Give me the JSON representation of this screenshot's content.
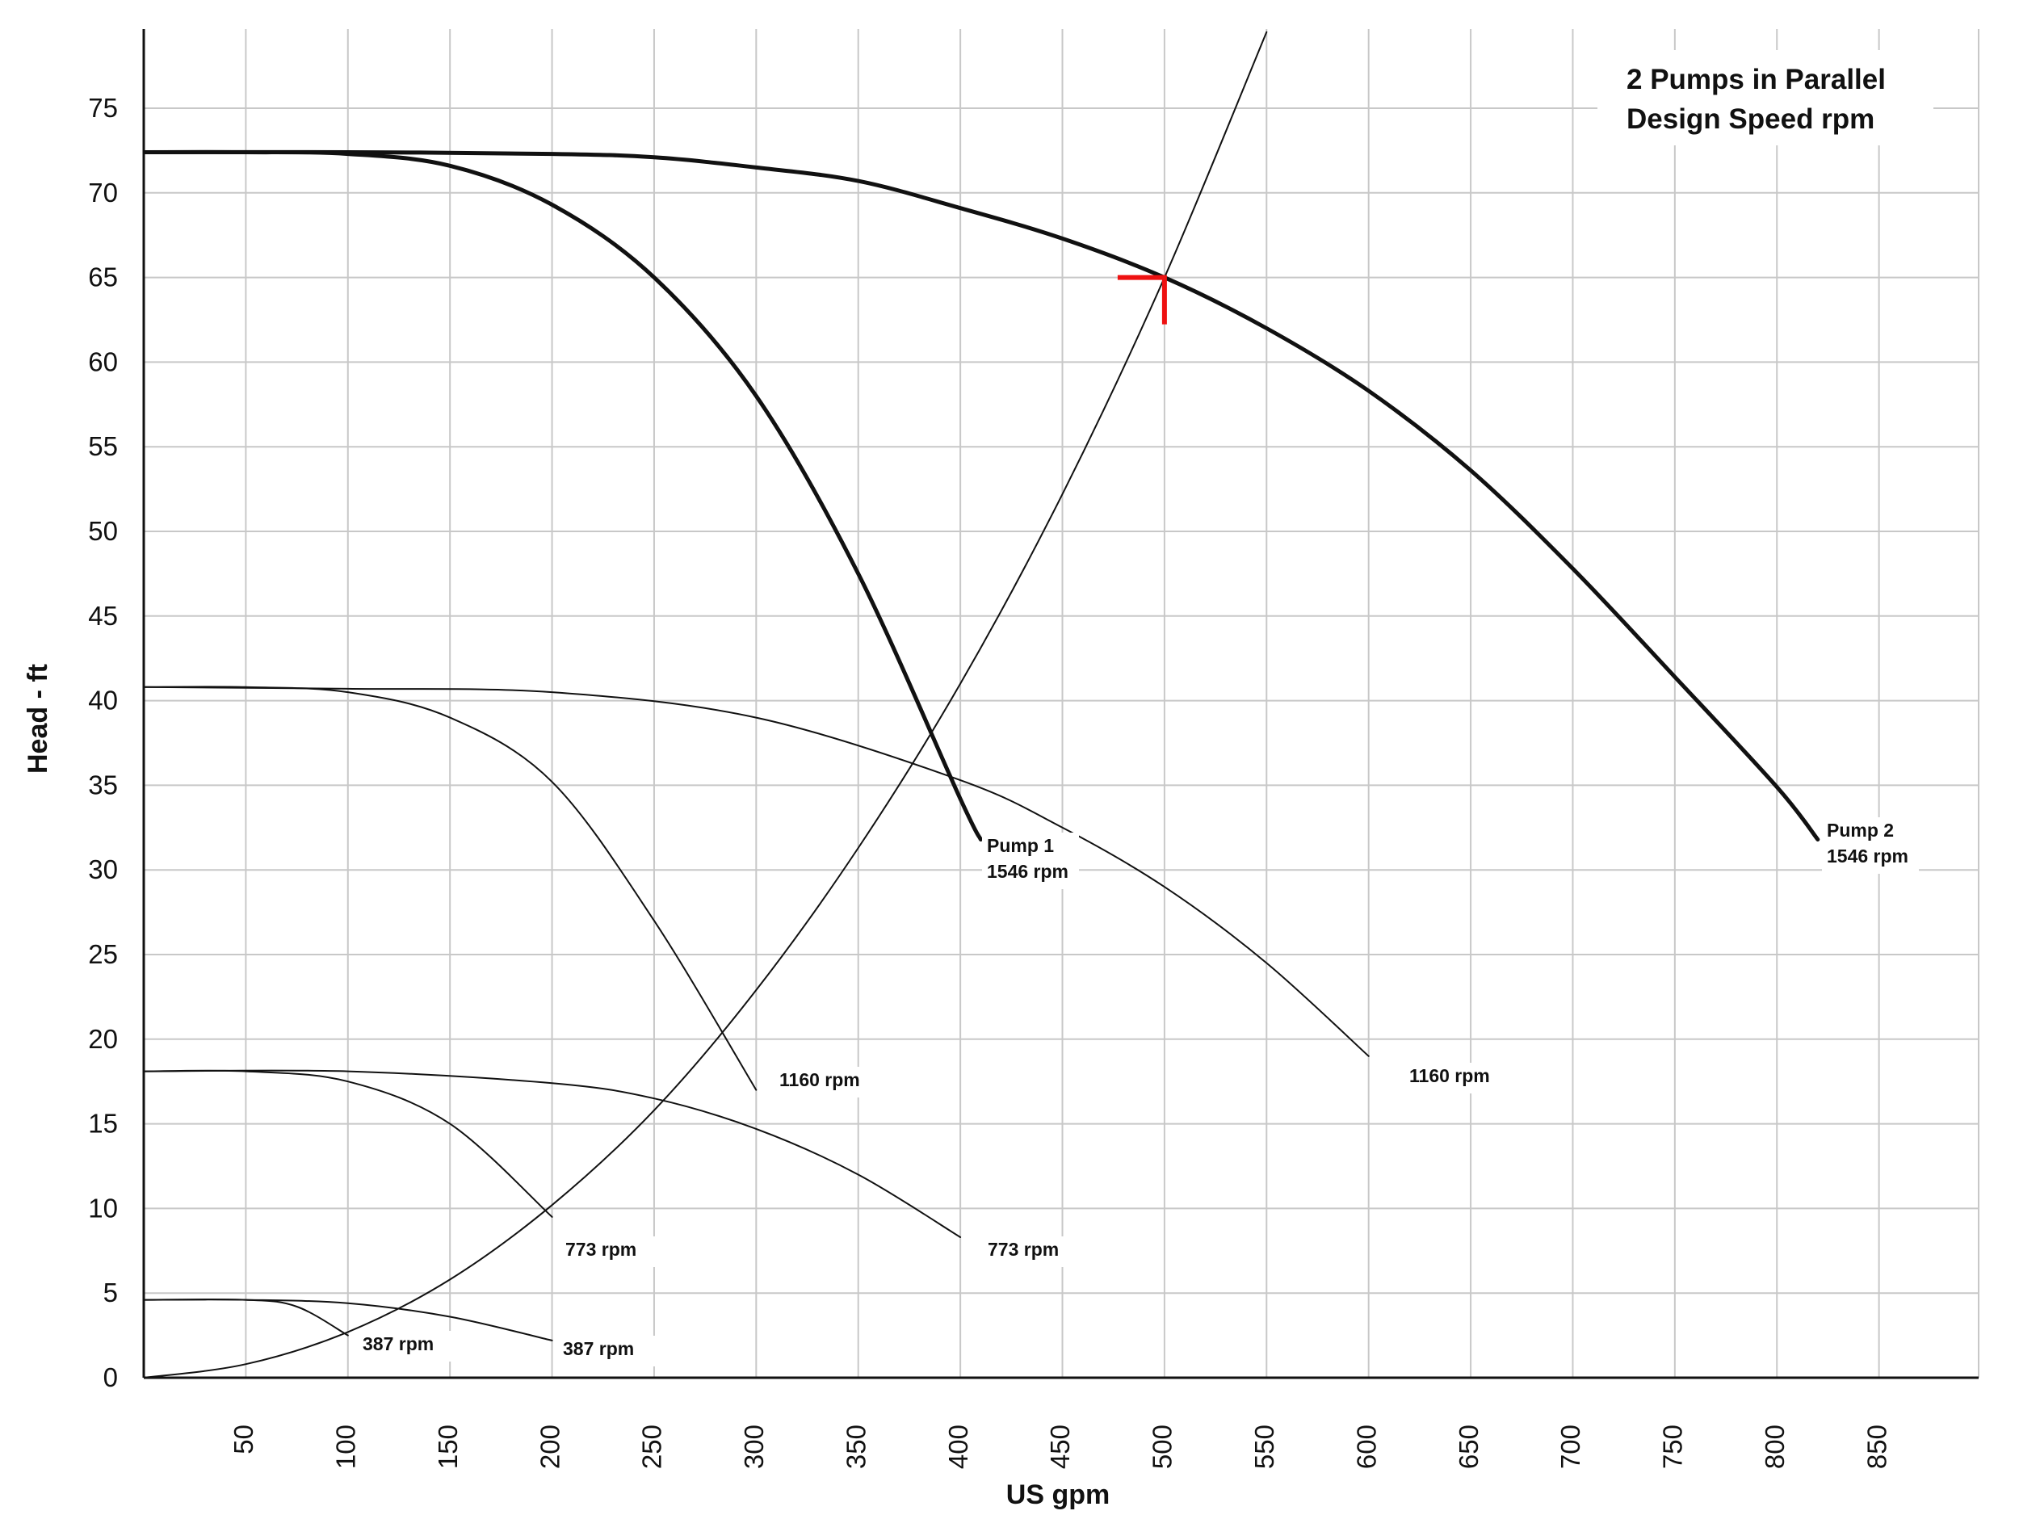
{
  "chart_data": {
    "type": "line",
    "title_lines": [
      "2 Pumps in Parallel",
      "Design Speed rpm"
    ],
    "xlabel": "US gpm",
    "ylabel": "Head - ft",
    "xlim": [
      0,
      900
    ],
    "ylim": [
      0,
      80
    ],
    "x_ticks": [
      "50",
      "100",
      "150",
      "200",
      "250",
      "300",
      "350",
      "400",
      "450",
      "500",
      "550",
      "600",
      "650",
      "700",
      "750",
      "800",
      "850"
    ],
    "y_ticks": [
      "0",
      "5",
      "10",
      "15",
      "20",
      "25",
      "30",
      "35",
      "40",
      "45",
      "50",
      "55",
      "60",
      "65",
      "70",
      "75"
    ],
    "grid": true,
    "colors": {
      "curve": "#111111",
      "grid": "#c8c8c8",
      "marker": "#ee1111"
    },
    "series": [
      {
        "label_lines": [
          "Pump 1",
          "1546 rpm"
        ],
        "weight": "bold",
        "x": [
          0,
          50,
          100,
          150,
          200,
          250,
          300,
          350,
          400,
          410
        ],
        "y": [
          72.4,
          72.4,
          72.3,
          71.6,
          69.3,
          65.0,
          58.0,
          47.5,
          34.2,
          31.8
        ]
      },
      {
        "label_lines": [
          "Pump 2",
          "1546 rpm"
        ],
        "weight": "bold",
        "x": [
          0,
          100,
          200,
          250,
          300,
          350,
          400,
          450,
          500,
          550,
          600,
          650,
          700,
          750,
          800,
          820
        ],
        "y": [
          72.4,
          72.4,
          72.3,
          72.1,
          71.5,
          70.7,
          69.1,
          67.3,
          65.0,
          62.0,
          58.3,
          53.6,
          47.8,
          41.4,
          34.9,
          31.8
        ]
      },
      {
        "label_lines": [
          "1160 rpm"
        ],
        "weight": "thin",
        "x": [
          0,
          50,
          100,
          150,
          200,
          250,
          300
        ],
        "y": [
          40.8,
          40.8,
          40.5,
          39.0,
          35.2,
          27.0,
          17.0
        ]
      },
      {
        "label_lines": [
          "1160 rpm"
        ],
        "weight": "thin",
        "x": [
          0,
          100,
          200,
          300,
          400,
          450,
          500,
          550,
          600
        ],
        "y": [
          40.8,
          40.7,
          40.5,
          39.0,
          35.3,
          32.5,
          29.0,
          24.5,
          19.0
        ]
      },
      {
        "label_lines": [
          "773 rpm"
        ],
        "weight": "thin",
        "x": [
          0,
          50,
          100,
          150,
          200
        ],
        "y": [
          18.1,
          18.1,
          17.5,
          15.0,
          9.5
        ]
      },
      {
        "label_lines": [
          "773 rpm"
        ],
        "weight": "thin",
        "x": [
          0,
          100,
          200,
          250,
          300,
          350,
          400
        ],
        "y": [
          18.1,
          18.1,
          17.4,
          16.5,
          14.7,
          12.0,
          8.3
        ]
      },
      {
        "label_lines": [
          "387 rpm"
        ],
        "weight": "thin",
        "x": [
          0,
          50,
          75,
          100
        ],
        "y": [
          4.6,
          4.6,
          4.2,
          2.5
        ]
      },
      {
        "label_lines": [
          "387 rpm"
        ],
        "weight": "thin",
        "x": [
          0,
          50,
          100,
          150,
          200
        ],
        "y": [
          4.6,
          4.6,
          4.4,
          3.6,
          2.2
        ]
      },
      {
        "label_lines": [],
        "weight": "thin",
        "role": "system-curve",
        "x": [
          0,
          50,
          100,
          150,
          200,
          250,
          300,
          350,
          400,
          450,
          500,
          550
        ],
        "y": [
          0,
          0.8,
          2.7,
          5.8,
          10.2,
          15.8,
          22.9,
          31.3,
          41.0,
          52.2,
          65.0,
          79.5
        ]
      }
    ],
    "operating_point": {
      "x": 500,
      "y": 65
    }
  }
}
